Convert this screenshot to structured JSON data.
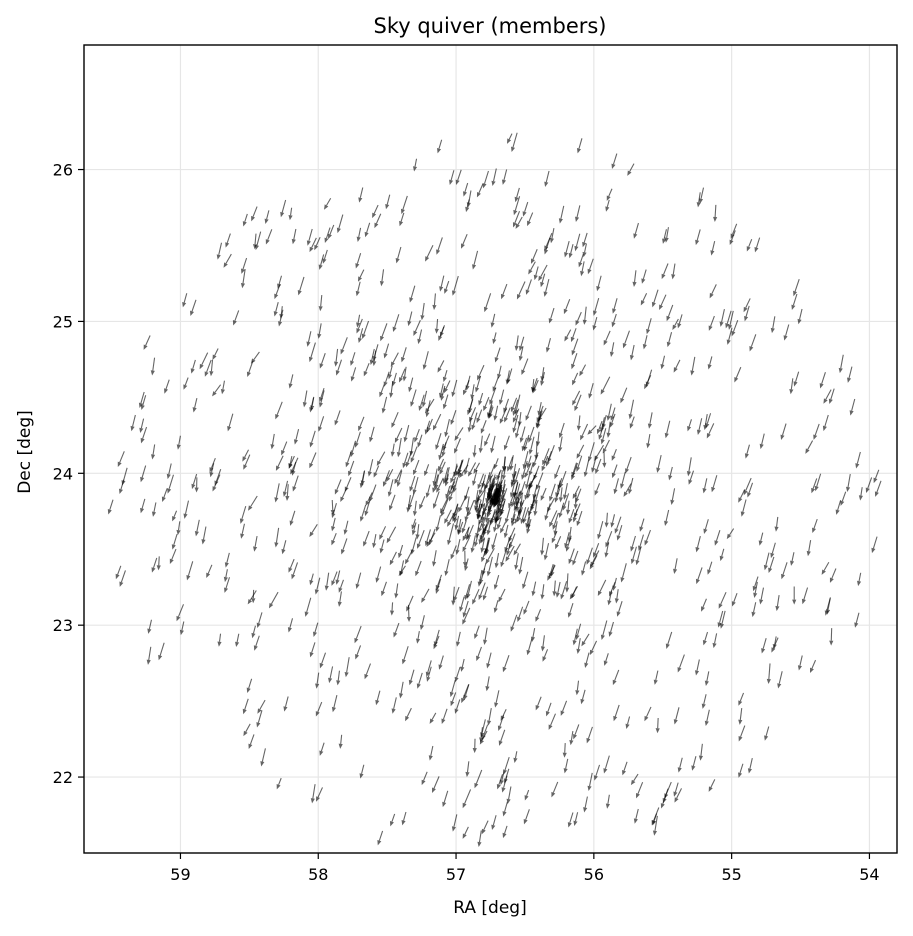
{
  "chart_data": {
    "type": "quiver",
    "title": "Sky quiver (members)",
    "xlabel": "RA [deg]",
    "ylabel": "Dec [deg]",
    "xlim": [
      59.7,
      53.8
    ],
    "ylim": [
      21.5,
      26.82
    ],
    "x_inverted": true,
    "grid": true,
    "x_ticks": [
      59,
      58,
      57,
      56,
      55,
      54
    ],
    "y_ticks": [
      22,
      23,
      24,
      25,
      26
    ],
    "x_tick_labels": [
      "59",
      "58",
      "57",
      "56",
      "55",
      "54"
    ],
    "y_tick_labels": [
      "22",
      "23",
      "24",
      "25",
      "26"
    ],
    "arrow_color": "#000000",
    "arrow_opacity": 0.6,
    "vector_mean": {
      "d_ra": 0.033,
      "d_dec": -0.1
    },
    "vector_note": "all arrows point roughly down-left with small scatter",
    "n_arrows": 1100,
    "cluster_center": [
      56.7,
      23.9
    ],
    "cluster_radius_deg": 2.5
  },
  "colors": {
    "background": "#ffffff",
    "axes": "#000000",
    "grid": "#e6e6e6",
    "arrow": "#000000"
  }
}
